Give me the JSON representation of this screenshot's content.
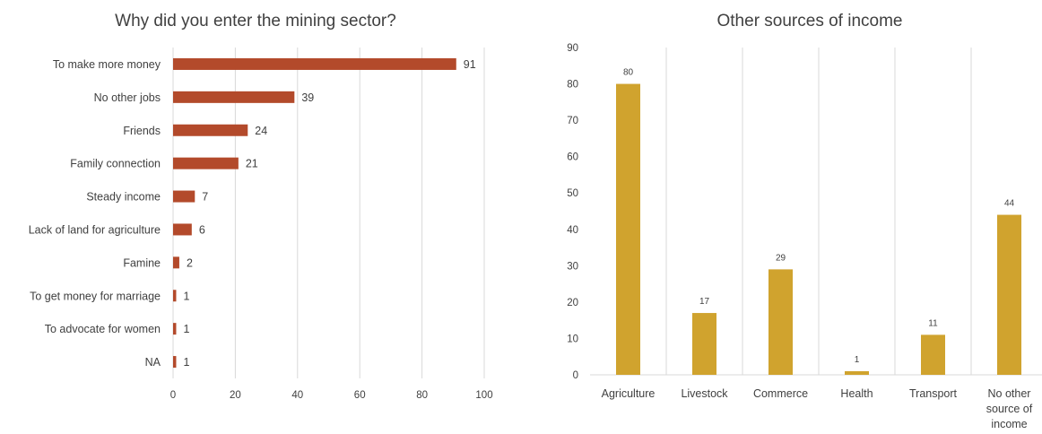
{
  "chart_data": [
    {
      "type": "bar",
      "orientation": "horizontal",
      "title": "Why did you enter the mining sector?",
      "categories": [
        "To make more money",
        "No other jobs",
        "Friends",
        "Family connection",
        "Steady income",
        "Lack of land for agriculture",
        "Famine",
        "To get money for marriage",
        "To advocate for women",
        "NA"
      ],
      "values": [
        91,
        39,
        24,
        21,
        7,
        6,
        2,
        1,
        1,
        1
      ],
      "xlim": [
        0,
        100
      ],
      "xticks": [
        "0",
        "20",
        "40",
        "60",
        "80",
        "100"
      ],
      "grid": true,
      "color": "#b34a2b"
    },
    {
      "type": "bar",
      "orientation": "vertical",
      "title": "Other sources of income",
      "categories": [
        "Agriculture",
        "Livestock",
        "Commerce",
        "Health",
        "Transport",
        [
          "No other",
          "source of",
          "income"
        ]
      ],
      "values": [
        80,
        17,
        29,
        1,
        11,
        44
      ],
      "ylim": [
        0,
        90
      ],
      "yticks": [
        "0",
        "10",
        "20",
        "30",
        "40",
        "50",
        "60",
        "70",
        "80",
        "90"
      ],
      "grid": true,
      "color": "#d0a32e"
    }
  ]
}
